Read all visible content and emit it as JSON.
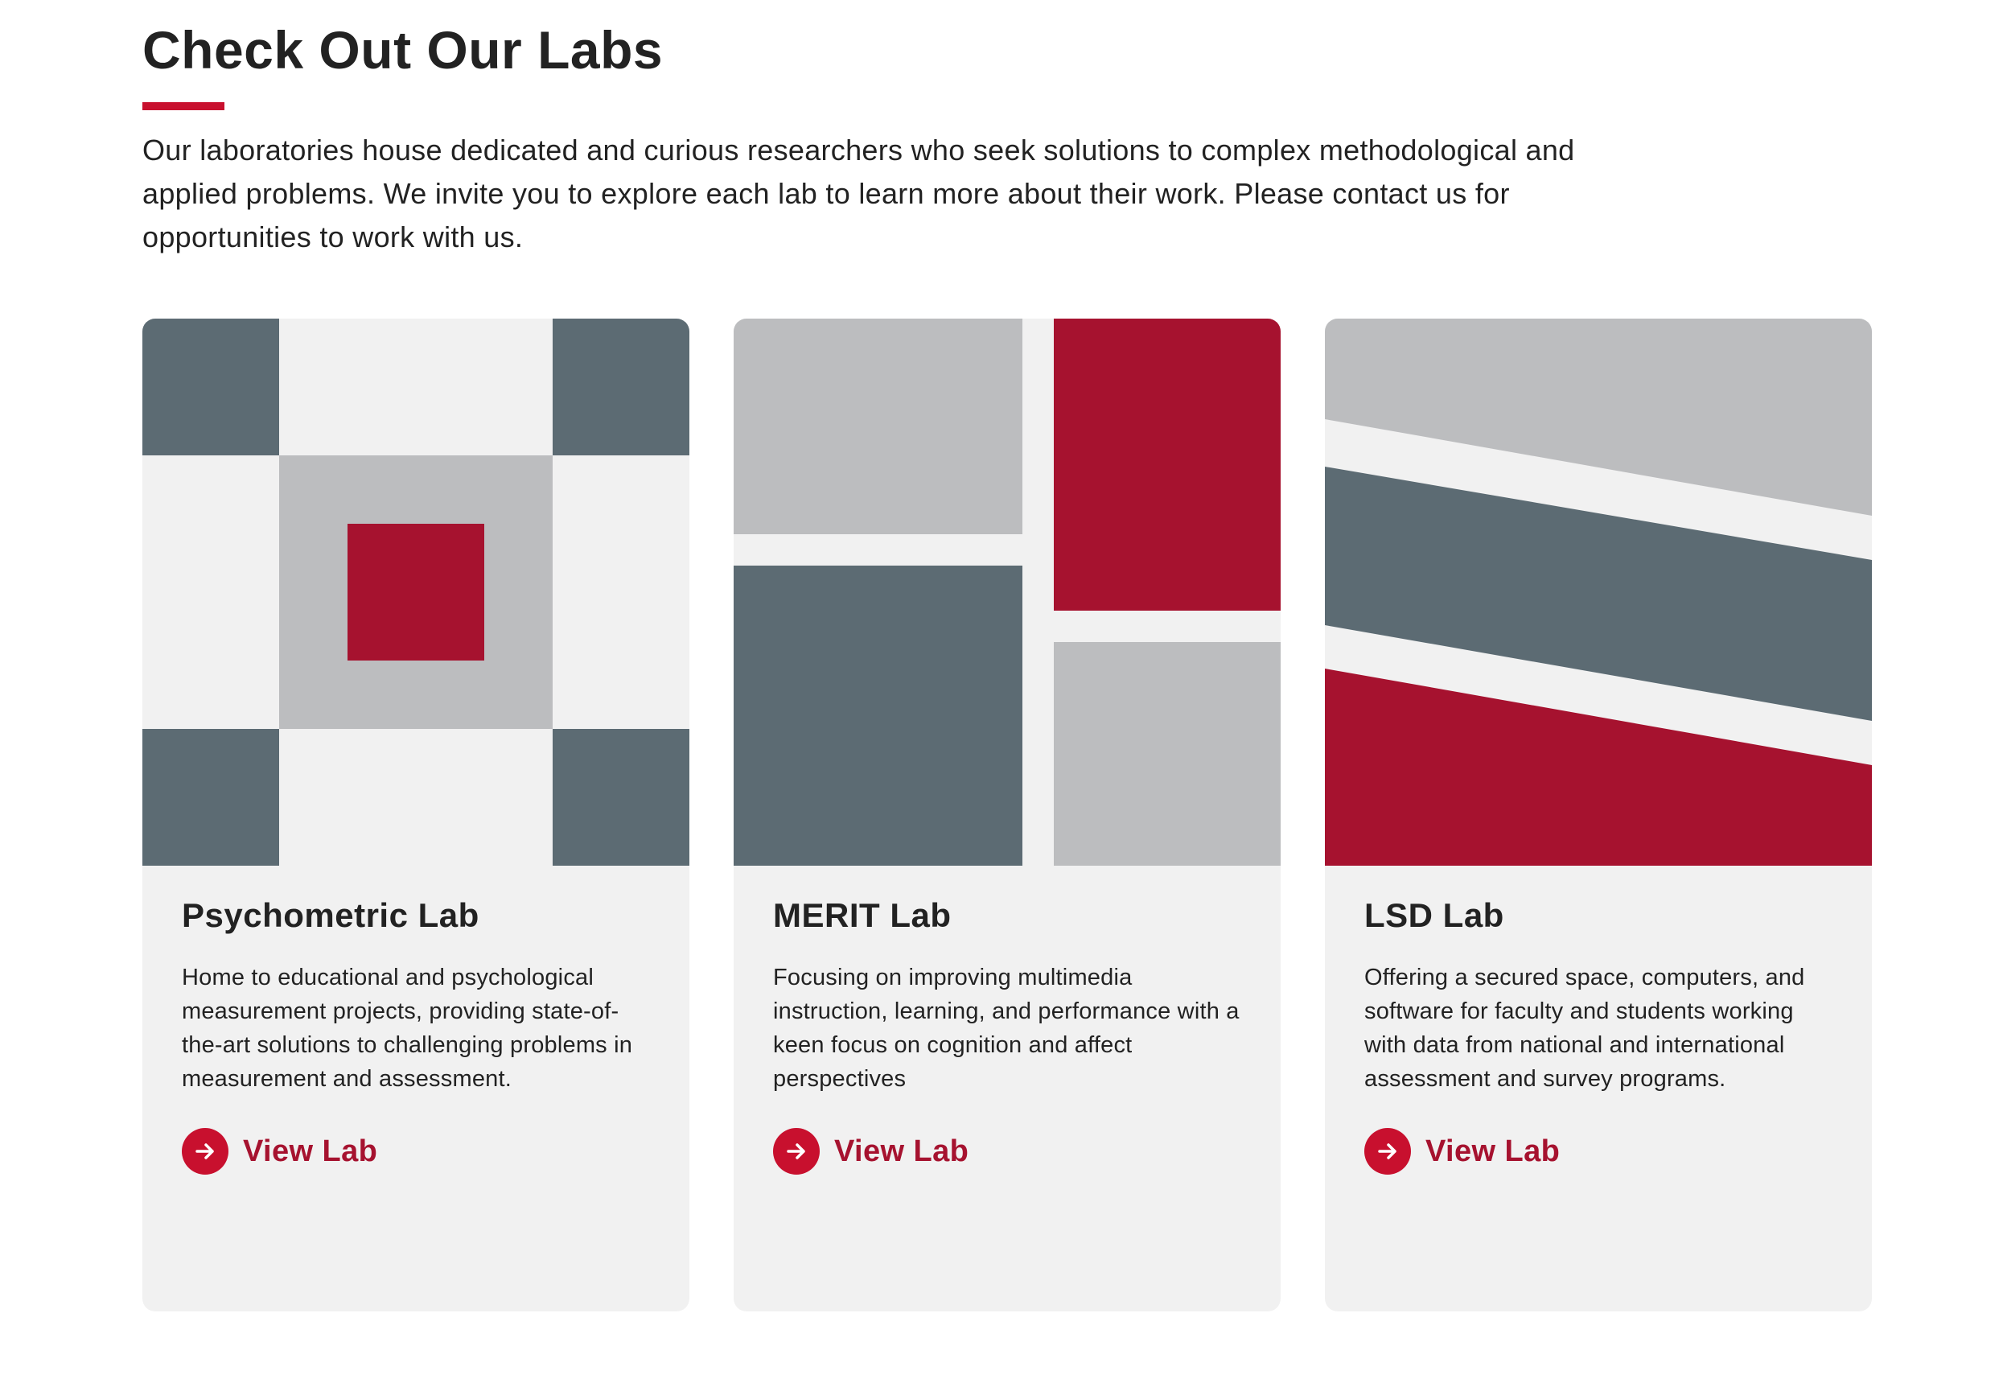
{
  "section": {
    "title": "Check Out Our Labs",
    "intro": "Our laboratories house dedicated and curious researchers who seek solutions to complex methodological and applied problems. We invite you to explore each lab to learn more about their work. Please contact us for opportunities to work with us."
  },
  "colors": {
    "accent_red": "#c8102e",
    "deep_red": "#a6122f",
    "slate": "#5c6b73",
    "gray": "#bcbdbf",
    "card_bg": "#f1f1f1"
  },
  "labs": [
    {
      "title": "Psychometric Lab",
      "description": "Home to educational and psychological measurement projects, providing state-of-the-art solutions to challenging problems in measurement and assessment.",
      "link_label": "View Lab",
      "link_icon": "arrow-right-circle-icon"
    },
    {
      "title": "MERIT Lab",
      "description": "Focusing on improving multimedia instruction, learning, and performance with a keen focus on cognition and affect perspectives",
      "link_label": "View Lab",
      "link_icon": "arrow-right-circle-icon"
    },
    {
      "title": "LSD Lab",
      "description": "Offering a secured space, computers, and software for faculty and students working with data from national and international assessment and survey programs.",
      "link_label": "View Lab",
      "link_icon": "arrow-right-circle-icon"
    }
  ]
}
